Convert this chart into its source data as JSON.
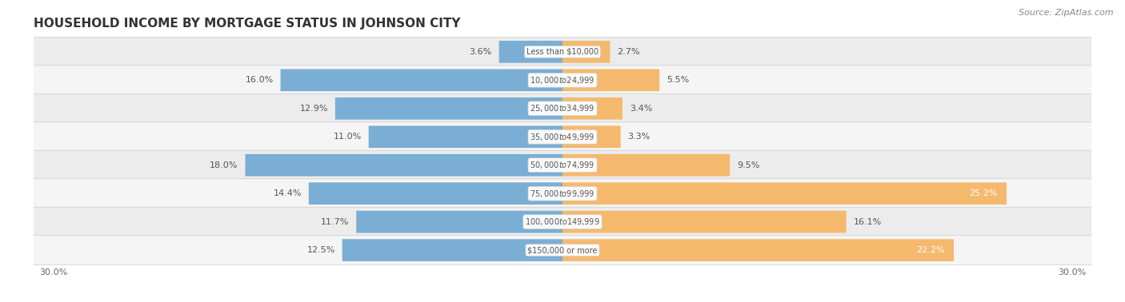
{
  "title": "HOUSEHOLD INCOME BY MORTGAGE STATUS IN JOHNSON CITY",
  "source": "Source: ZipAtlas.com",
  "categories": [
    "Less than $10,000",
    "$10,000 to $24,999",
    "$25,000 to $34,999",
    "$35,000 to $49,999",
    "$50,000 to $74,999",
    "$75,000 to $99,999",
    "$100,000 to $149,999",
    "$150,000 or more"
  ],
  "without_mortgage": [
    3.6,
    16.0,
    12.9,
    11.0,
    18.0,
    14.4,
    11.7,
    12.5
  ],
  "with_mortgage": [
    2.7,
    5.5,
    3.4,
    3.3,
    9.5,
    25.2,
    16.1,
    22.2
  ],
  "color_without": "#7aaed4",
  "color_with": "#f5b96e",
  "color_without_light": "#aecfe8",
  "color_with_light": "#fad9b0",
  "bg_odd": "#ececec",
  "bg_even": "#f5f5f5",
  "xlim": 30.0,
  "axis_label": "30.0%",
  "inside_label_threshold_without": 20.0,
  "inside_label_threshold_with": 20.0,
  "title_fontsize": 11,
  "source_fontsize": 8,
  "bar_label_fontsize": 8,
  "cat_label_fontsize": 7,
  "legend_fontsize": 8
}
